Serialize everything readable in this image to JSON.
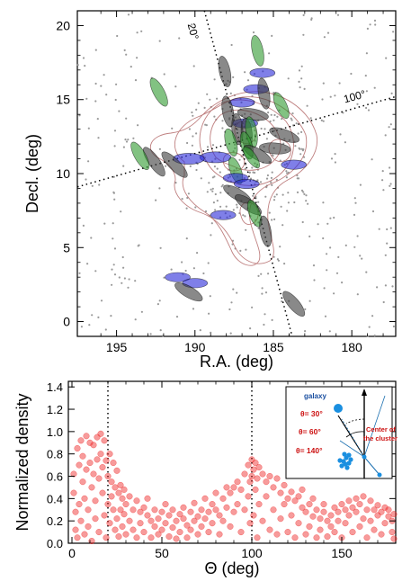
{
  "chart_data": [
    {
      "type": "scatter",
      "xlabel": "R.A. (deg)",
      "ylabel": "Decl. (deg)",
      "xlim": [
        197.5,
        177.2
      ],
      "ylim": [
        -1,
        21
      ],
      "xticks": [
        195,
        190,
        185,
        180
      ],
      "yticks": [
        0,
        5,
        10,
        15,
        20
      ],
      "grid": false,
      "line_labels": [
        "20°",
        "100°"
      ],
      "axis_lines": [
        {
          "label": "20°",
          "x1": 189.4,
          "y1": 21.0,
          "x2": 183.8,
          "y2": -1.0
        },
        {
          "label": "100°",
          "x1": 197.5,
          "y1": 9.1,
          "x2": 177.2,
          "y2": 15.2
        }
      ],
      "ellipse_colors": {
        "black": "#3a3a3a",
        "blue": "#2a2ad8",
        "green": "#2e9a2e"
      },
      "ellipses": [
        {
          "color": "black",
          "x": 188.1,
          "y": 16.9,
          "a": 1.0,
          "b": 0.35,
          "ang": 78
        },
        {
          "color": "green",
          "x": 186.0,
          "y": 18.3,
          "a": 1.0,
          "b": 0.35,
          "ang": 78
        },
        {
          "color": "green",
          "x": 192.3,
          "y": 15.5,
          "a": 1.0,
          "b": 0.35,
          "ang": 62
        },
        {
          "color": "blue",
          "x": 185.7,
          "y": 16.8,
          "a": 0.8,
          "b": 0.3,
          "ang": 0
        },
        {
          "color": "blue",
          "x": 186.1,
          "y": 15.7,
          "a": 0.8,
          "b": 0.3,
          "ang": 0
        },
        {
          "color": "black",
          "x": 185.6,
          "y": 15.4,
          "a": 1.0,
          "b": 0.35,
          "ang": 80
        },
        {
          "color": "blue",
          "x": 187.0,
          "y": 14.8,
          "a": 0.8,
          "b": 0.3,
          "ang": 0
        },
        {
          "color": "black",
          "x": 187.9,
          "y": 14.2,
          "a": 1.0,
          "b": 0.35,
          "ang": 80
        },
        {
          "color": "black",
          "x": 186.3,
          "y": 14.0,
          "a": 1.0,
          "b": 0.35,
          "ang": 10
        },
        {
          "color": "green",
          "x": 184.5,
          "y": 14.6,
          "a": 0.9,
          "b": 0.35,
          "ang": 65
        },
        {
          "color": "blue",
          "x": 186.8,
          "y": 13.4,
          "a": 0.8,
          "b": 0.3,
          "ang": 0
        },
        {
          "color": "black",
          "x": 187.3,
          "y": 13.0,
          "a": 1.0,
          "b": 0.35,
          "ang": 85
        },
        {
          "color": "black",
          "x": 186.7,
          "y": 12.7,
          "a": 1.0,
          "b": 0.35,
          "ang": 85
        },
        {
          "color": "green",
          "x": 186.4,
          "y": 12.8,
          "a": 1.0,
          "b": 0.35,
          "ang": 80
        },
        {
          "color": "black",
          "x": 184.3,
          "y": 12.6,
          "a": 1.0,
          "b": 0.35,
          "ang": 20
        },
        {
          "color": "green",
          "x": 187.7,
          "y": 12.1,
          "a": 0.9,
          "b": 0.35,
          "ang": 75
        },
        {
          "color": "green",
          "x": 186.7,
          "y": 11.9,
          "a": 0.9,
          "b": 0.35,
          "ang": 75
        },
        {
          "color": "black",
          "x": 184.9,
          "y": 11.7,
          "a": 1.0,
          "b": 0.35,
          "ang": 5
        },
        {
          "color": "black",
          "x": 186.0,
          "y": 11.3,
          "a": 1.0,
          "b": 0.35,
          "ang": 30
        },
        {
          "color": "green",
          "x": 186.4,
          "y": 11.1,
          "a": 0.8,
          "b": 0.3,
          "ang": 55
        },
        {
          "color": "blue",
          "x": 188.7,
          "y": 11.1,
          "a": 1.0,
          "b": 0.35,
          "ang": 0
        },
        {
          "color": "blue",
          "x": 190.4,
          "y": 11.0,
          "a": 1.0,
          "b": 0.35,
          "ang": 0
        },
        {
          "color": "black",
          "x": 191.3,
          "y": 10.6,
          "a": 1.1,
          "b": 0.35,
          "ang": 45
        },
        {
          "color": "black",
          "x": 192.6,
          "y": 10.8,
          "a": 1.1,
          "b": 0.35,
          "ang": 55
        },
        {
          "color": "green",
          "x": 193.5,
          "y": 11.2,
          "a": 1.0,
          "b": 0.35,
          "ang": 60
        },
        {
          "color": "blue",
          "x": 183.7,
          "y": 10.6,
          "a": 0.8,
          "b": 0.3,
          "ang": 0
        },
        {
          "color": "green",
          "x": 187.4,
          "y": 10.2,
          "a": 0.9,
          "b": 0.35,
          "ang": 70
        },
        {
          "color": "blue",
          "x": 187.4,
          "y": 9.7,
          "a": 0.8,
          "b": 0.3,
          "ang": 0
        },
        {
          "color": "blue",
          "x": 186.7,
          "y": 9.3,
          "a": 0.8,
          "b": 0.3,
          "ang": 0
        },
        {
          "color": "black",
          "x": 187.3,
          "y": 8.6,
          "a": 1.0,
          "b": 0.35,
          "ang": 30
        },
        {
          "color": "black",
          "x": 186.6,
          "y": 7.9,
          "a": 1.0,
          "b": 0.35,
          "ang": 35
        },
        {
          "color": "green",
          "x": 186.2,
          "y": 7.3,
          "a": 0.9,
          "b": 0.35,
          "ang": 70
        },
        {
          "color": "blue",
          "x": 188.2,
          "y": 7.2,
          "a": 0.8,
          "b": 0.3,
          "ang": 0
        },
        {
          "color": "black",
          "x": 185.5,
          "y": 6.1,
          "a": 1.0,
          "b": 0.35,
          "ang": 80
        },
        {
          "color": "blue",
          "x": 191.1,
          "y": 3.0,
          "a": 0.8,
          "b": 0.3,
          "ang": 0
        },
        {
          "color": "blue",
          "x": 190.0,
          "y": 2.6,
          "a": 0.8,
          "b": 0.3,
          "ang": 0
        },
        {
          "color": "black",
          "x": 190.4,
          "y": 2.0,
          "a": 1.0,
          "b": 0.35,
          "ang": 30
        },
        {
          "color": "black",
          "x": 183.7,
          "y": 1.2,
          "a": 1.0,
          "b": 0.35,
          "ang": 50
        }
      ]
    },
    {
      "type": "scatter",
      "xlabel": "Θ (deg)",
      "ylabel": "Normalized density",
      "xlim": [
        -2,
        180
      ],
      "ylim": [
        0,
        1.45
      ],
      "xticks": [
        0,
        50,
        100,
        150
      ],
      "yticks": [
        0.0,
        0.2,
        0.4,
        0.6,
        0.8,
        1.0,
        1.2,
        1.4
      ],
      "ytick_labels": [
        "0.0",
        "0.2",
        "0.4",
        "0.6",
        "0.8",
        "1.0",
        "1.2",
        "1.4"
      ],
      "grid": false,
      "reference_lines_x": [
        20,
        100
      ],
      "point_color": "#ee2222",
      "points": [
        [
          1,
          0.62
        ],
        [
          1,
          0.45
        ],
        [
          2,
          0.28
        ],
        [
          2,
          0.12
        ],
        [
          3,
          0.85
        ],
        [
          3,
          0.05
        ],
        [
          4,
          0.7
        ],
        [
          4,
          0.35
        ],
        [
          5,
          0.92
        ],
        [
          5,
          0.2
        ],
        [
          6,
          0.78
        ],
        [
          6,
          0.55
        ],
        [
          7,
          0.4
        ],
        [
          7,
          0.08
        ],
        [
          8,
          0.96
        ],
        [
          8,
          0.66
        ],
        [
          9,
          0.3
        ],
        [
          9,
          0.15
        ],
        [
          10,
          0.9
        ],
        [
          10,
          0.72
        ],
        [
          11,
          0.5
        ],
        [
          11,
          0.02
        ],
        [
          12,
          0.88
        ],
        [
          12,
          0.62
        ],
        [
          13,
          0.38
        ],
        [
          13,
          0.22
        ],
        [
          14,
          0.95
        ],
        [
          14,
          0.75
        ],
        [
          15,
          0.58
        ],
        [
          15,
          0.1
        ],
        [
          16,
          0.98
        ],
        [
          16,
          0.8
        ],
        [
          17,
          0.68
        ],
        [
          17,
          0.45
        ],
        [
          18,
          0.92
        ],
        [
          18,
          0.25
        ],
        [
          19,
          0.74
        ],
        [
          19,
          0.05
        ],
        [
          20,
          0.6
        ],
        [
          20,
          0.35
        ],
        [
          21,
          0.8
        ],
        [
          21,
          0.18
        ],
        [
          22,
          0.55
        ],
        [
          22,
          0.42
        ],
        [
          23,
          0.72
        ],
        [
          23,
          0.3
        ],
        [
          24,
          0.5
        ],
        [
          24,
          0.12
        ],
        [
          25,
          0.65
        ],
        [
          25,
          0.22
        ],
        [
          26,
          0.45
        ],
        [
          26,
          0.06
        ],
        [
          27,
          0.52
        ],
        [
          27,
          0.3
        ],
        [
          28,
          0.4
        ],
        [
          28,
          0.15
        ],
        [
          29,
          0.48
        ],
        [
          29,
          0.26
        ],
        [
          30,
          0.35
        ],
        [
          30,
          0.08
        ],
        [
          32,
          0.42
        ],
        [
          32,
          0.2
        ],
        [
          34,
          0.3
        ],
        [
          34,
          0.12
        ],
        [
          36,
          0.38
        ],
        [
          36,
          0.05
        ],
        [
          38,
          0.28
        ],
        [
          38,
          0.18
        ],
        [
          40,
          0.32
        ],
        [
          40,
          0.1
        ],
        [
          42,
          0.25
        ],
        [
          42,
          0.4
        ],
        [
          44,
          0.2
        ],
        [
          44,
          0.05
        ],
        [
          46,
          0.3
        ],
        [
          46,
          0.15
        ],
        [
          48,
          0.22
        ],
        [
          48,
          0.08
        ],
        [
          50,
          0.28
        ],
        [
          50,
          0.12
        ],
        [
          52,
          0.18
        ],
        [
          52,
          0.35
        ],
        [
          54,
          0.25
        ],
        [
          54,
          0.06
        ],
        [
          56,
          0.3
        ],
        [
          56,
          0.14
        ],
        [
          58,
          0.2
        ],
        [
          58,
          0.04
        ],
        [
          60,
          0.26
        ],
        [
          60,
          0.1
        ],
        [
          62,
          0.22
        ],
        [
          62,
          0.32
        ],
        [
          64,
          0.16
        ],
        [
          64,
          0.05
        ],
        [
          66,
          0.28
        ],
        [
          66,
          0.12
        ],
        [
          68,
          0.2
        ],
        [
          68,
          0.36
        ],
        [
          70,
          0.24
        ],
        [
          70,
          0.08
        ],
        [
          72,
          0.3
        ],
        [
          72,
          0.15
        ],
        [
          74,
          0.22
        ],
        [
          74,
          0.4
        ],
        [
          76,
          0.28
        ],
        [
          76,
          0.1
        ],
        [
          78,
          0.35
        ],
        [
          78,
          0.18
        ],
        [
          80,
          0.3
        ],
        [
          80,
          0.45
        ],
        [
          82,
          0.25
        ],
        [
          82,
          0.08
        ],
        [
          84,
          0.4
        ],
        [
          84,
          0.2
        ],
        [
          86,
          0.32
        ],
        [
          86,
          0.5
        ],
        [
          88,
          0.45
        ],
        [
          88,
          0.15
        ],
        [
          90,
          0.5
        ],
        [
          90,
          0.28
        ],
        [
          92,
          0.55
        ],
        [
          92,
          0.35
        ],
        [
          94,
          0.48
        ],
        [
          94,
          0.1
        ],
        [
          96,
          0.62
        ],
        [
          96,
          0.3
        ],
        [
          98,
          0.7
        ],
        [
          98,
          0.42
        ],
        [
          99,
          0.55
        ],
        [
          99,
          0.18
        ],
        [
          100,
          0.75
        ],
        [
          100,
          0.6
        ],
        [
          101,
          0.66
        ],
        [
          101,
          0.25
        ],
        [
          102,
          0.72
        ],
        [
          102,
          0.48
        ],
        [
          103,
          0.58
        ],
        [
          103,
          0.05
        ],
        [
          104,
          0.68
        ],
        [
          104,
          0.35
        ],
        [
          106,
          0.62
        ],
        [
          106,
          0.2
        ],
        [
          108,
          0.55
        ],
        [
          108,
          0.42
        ],
        [
          110,
          0.6
        ],
        [
          110,
          0.12
        ],
        [
          112,
          0.5
        ],
        [
          112,
          0.3
        ],
        [
          114,
          0.58
        ],
        [
          114,
          0.08
        ],
        [
          116,
          0.45
        ],
        [
          116,
          0.22
        ],
        [
          118,
          0.52
        ],
        [
          118,
          0.35
        ],
        [
          120,
          0.4
        ],
        [
          120,
          0.1
        ],
        [
          122,
          0.46
        ],
        [
          122,
          0.25
        ],
        [
          124,
          0.38
        ],
        [
          124,
          0.05
        ],
        [
          126,
          0.42
        ],
        [
          126,
          0.18
        ],
        [
          128,
          0.32
        ],
        [
          128,
          0.48
        ],
        [
          130,
          0.28
        ],
        [
          130,
          0.08
        ],
        [
          132,
          0.35
        ],
        [
          132,
          0.15
        ],
        [
          134,
          0.24
        ],
        [
          134,
          0.4
        ],
        [
          136,
          0.3
        ],
        [
          136,
          0.05
        ],
        [
          138,
          0.22
        ],
        [
          138,
          0.12
        ],
        [
          140,
          0.28
        ],
        [
          140,
          0.35
        ],
        [
          142,
          0.2
        ],
        [
          142,
          0.06
        ],
        [
          144,
          0.25
        ],
        [
          144,
          0.15
        ],
        [
          146,
          0.32
        ],
        [
          146,
          0.1
        ],
        [
          148,
          0.28
        ],
        [
          148,
          0.2
        ],
        [
          150,
          0.35
        ],
        [
          150,
          0.05
        ],
        [
          152,
          0.3
        ],
        [
          152,
          0.18
        ],
        [
          154,
          0.38
        ],
        [
          154,
          0.25
        ],
        [
          156,
          0.32
        ],
        [
          156,
          0.1
        ],
        [
          158,
          0.4
        ],
        [
          158,
          0.28
        ],
        [
          160,
          0.35
        ],
        [
          160,
          0.15
        ],
        [
          162,
          0.42
        ],
        [
          162,
          0.22
        ],
        [
          164,
          0.3
        ],
        [
          164,
          0.05
        ],
        [
          166,
          0.38
        ],
        [
          166,
          0.2
        ],
        [
          168,
          0.3
        ],
        [
          168,
          0.12
        ],
        [
          170,
          0.34
        ],
        [
          170,
          0.25
        ],
        [
          172,
          0.28
        ],
        [
          172,
          0.08
        ],
        [
          174,
          0.32
        ],
        [
          174,
          0.18
        ],
        [
          176,
          0.24
        ],
        [
          176,
          0.3
        ],
        [
          178,
          0.2
        ],
        [
          178,
          0.1
        ],
        [
          179,
          0.26
        ],
        [
          179,
          0.04
        ]
      ],
      "inset": {
        "galaxy_label": "galaxy",
        "center_label_line1": "Center of",
        "center_label_line2": "the cluster",
        "angle_labels": [
          "θ= 30°",
          "θ= 60°",
          "θ= 140°"
        ],
        "galaxy_color": "#1a8fe0",
        "label_color": "#cc1111"
      }
    }
  ]
}
